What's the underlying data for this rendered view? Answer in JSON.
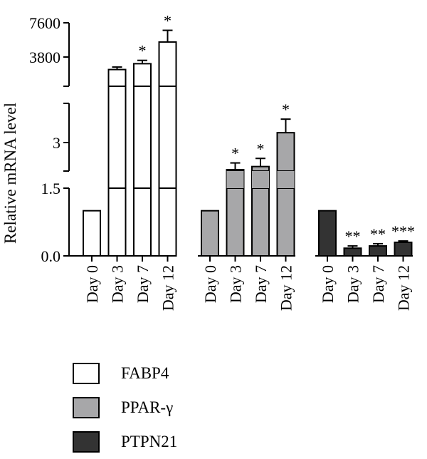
{
  "chart_data": {
    "type": "bar",
    "ylabel": "Relative mRNA level",
    "categories": [
      "Day 0",
      "Day 3",
      "Day 7",
      "Day 12"
    ],
    "y_ticks": {
      "low": [
        "0.0",
        "1.5"
      ],
      "mid": [
        "3"
      ],
      "high": [
        "3800",
        "7600"
      ]
    },
    "series": [
      {
        "name": "FABP4",
        "color": "#ffffff",
        "values": [
          1.0,
          2000,
          2700,
          5300
        ],
        "errors": [
          0,
          300,
          400,
          1400
        ],
        "sig": [
          "",
          "",
          "*",
          "*"
        ]
      },
      {
        "name": "PPAR-γ",
        "color": "#a7a7a9",
        "values": [
          1.0,
          2.38,
          2.45,
          3.2
        ],
        "errors": [
          0,
          0.15,
          0.18,
          0.3
        ],
        "sig": [
          "",
          "*",
          "*",
          "*"
        ]
      },
      {
        "name": "PTPN21",
        "color": "#333333",
        "values": [
          1.0,
          0.17,
          0.22,
          0.3
        ],
        "errors": [
          0,
          0.05,
          0.05,
          0.03
        ],
        "sig": [
          "",
          "**",
          "**",
          "***"
        ]
      }
    ]
  }
}
